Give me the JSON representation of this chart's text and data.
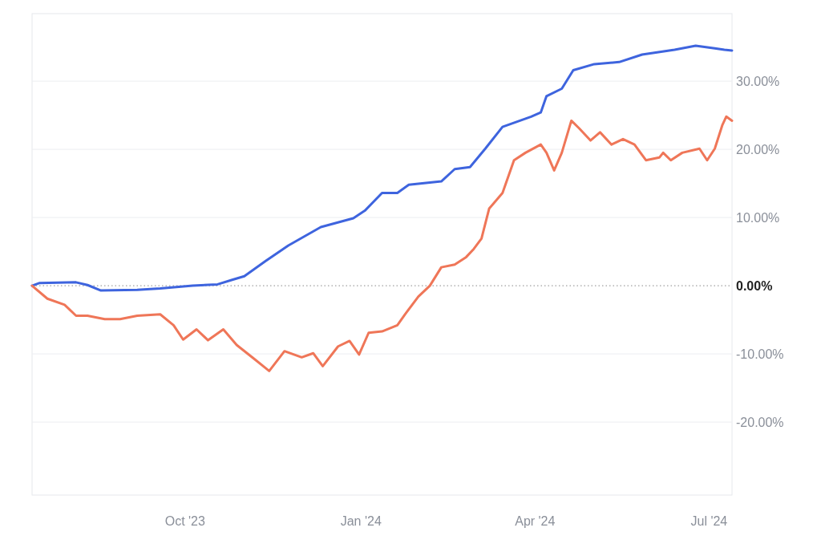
{
  "chart_data": {
    "type": "line",
    "xlim": [
      "2023-07-13",
      "2024-07-13"
    ],
    "xticks": [
      {
        "value": "2023-10-01",
        "label": "Oct '23"
      },
      {
        "value": "2024-01-01",
        "label": "Jan '24"
      },
      {
        "value": "2024-04-01",
        "label": "Apr '24"
      },
      {
        "value": "2024-07-01",
        "label": "Jul '24"
      }
    ],
    "ylim": [
      -30.7,
      39.9
    ],
    "yticks": [
      {
        "value": -20,
        "label": "-20.00%"
      },
      {
        "value": -10,
        "label": "-10.00%"
      },
      {
        "value": 10,
        "label": "10.00%"
      },
      {
        "value": 20,
        "label": "20.00%"
      },
      {
        "value": 30,
        "label": "30.00%"
      }
    ],
    "grid": "y",
    "line_style": "solid",
    "ref_lines": [
      {
        "axis": "y",
        "value": 0,
        "label": "0.00%",
        "line_style": "dotted",
        "color": "#888888"
      }
    ],
    "series": [
      {
        "color": "#3e64de",
        "x": [
          "2023-07-13",
          "2023-07-17",
          "2023-08-05",
          "2023-08-11",
          "2023-08-18",
          "2023-09-06",
          "2023-09-18",
          "2023-10-05",
          "2023-10-18",
          "2023-10-26",
          "2023-11-01",
          "2023-11-12",
          "2023-11-24",
          "2023-12-11",
          "2023-12-28",
          "2024-01-03",
          "2024-01-12",
          "2024-01-20",
          "2024-01-26",
          "2024-02-12",
          "2024-02-19",
          "2024-02-27",
          "2024-03-06",
          "2024-03-15",
          "2024-03-30",
          "2024-04-04",
          "2024-04-07",
          "2024-04-15",
          "2024-04-21",
          "2024-05-02",
          "2024-05-15",
          "2024-05-27",
          "2024-06-13",
          "2024-06-24",
          "2024-07-04",
          "2024-07-09",
          "2024-07-13"
        ],
        "values": [
          0,
          0.4,
          0.5,
          0.1,
          -0.7,
          -0.6,
          -0.4,
          0,
          0.2,
          0.9,
          1.4,
          3.6,
          5.9,
          8.6,
          9.9,
          11,
          13.6,
          13.6,
          14.8,
          15.3,
          17.1,
          17.4,
          20.1,
          23.3,
          24.8,
          25.4,
          27.8,
          28.9,
          31.6,
          32.5,
          32.8,
          33.9,
          34.6,
          35.2,
          34.8,
          34.6,
          34.5
        ]
      },
      {
        "color": "#ef7658",
        "x": [
          "2023-07-13",
          "2023-07-21",
          "2023-07-30",
          "2023-08-05",
          "2023-08-11",
          "2023-08-20",
          "2023-08-28",
          "2023-09-06",
          "2023-09-18",
          "2023-09-25",
          "2023-09-30",
          "2023-10-07",
          "2023-10-13",
          "2023-10-21",
          "2023-10-28",
          "2023-11-06",
          "2023-11-14",
          "2023-11-22",
          "2023-12-01",
          "2023-12-07",
          "2023-12-12",
          "2023-12-20",
          "2023-12-26",
          "2023-12-31",
          "2024-01-05",
          "2024-01-12",
          "2024-01-20",
          "2024-01-24",
          "2024-01-31",
          "2024-02-06",
          "2024-02-12",
          "2024-02-19",
          "2024-02-25",
          "2024-02-29",
          "2024-03-04",
          "2024-03-08",
          "2024-03-15",
          "2024-03-21",
          "2024-03-27",
          "2024-04-04",
          "2024-04-07",
          "2024-04-11",
          "2024-04-15",
          "2024-04-20",
          "2024-04-24",
          "2024-04-30",
          "2024-05-05",
          "2024-05-11",
          "2024-05-17",
          "2024-05-23",
          "2024-05-29",
          "2024-06-05",
          "2024-06-07",
          "2024-06-11",
          "2024-06-17",
          "2024-06-26",
          "2024-06-30",
          "2024-07-04",
          "2024-07-08",
          "2024-07-10",
          "2024-07-13"
        ],
        "values": [
          0,
          -1.9,
          -2.8,
          -4.4,
          -4.4,
          -4.9,
          -4.9,
          -4.4,
          -4.2,
          -5.8,
          -7.9,
          -6.4,
          -8.0,
          -6.4,
          -8.7,
          -10.7,
          -12.5,
          -9.6,
          -10.5,
          -9.9,
          -11.8,
          -8.9,
          -8.1,
          -10.1,
          -6.9,
          -6.7,
          -5.8,
          -4.2,
          -1.6,
          0,
          2.7,
          3.1,
          4.2,
          5.4,
          6.9,
          11.3,
          13.6,
          18.4,
          19.5,
          20.7,
          19.5,
          16.9,
          19.5,
          24.2,
          23.1,
          21.3,
          22.5,
          20.7,
          21.5,
          20.7,
          18.4,
          18.8,
          19.5,
          18.4,
          19.5,
          20.1,
          18.4,
          20.1,
          23.6,
          24.8,
          24.2
        ]
      }
    ]
  }
}
